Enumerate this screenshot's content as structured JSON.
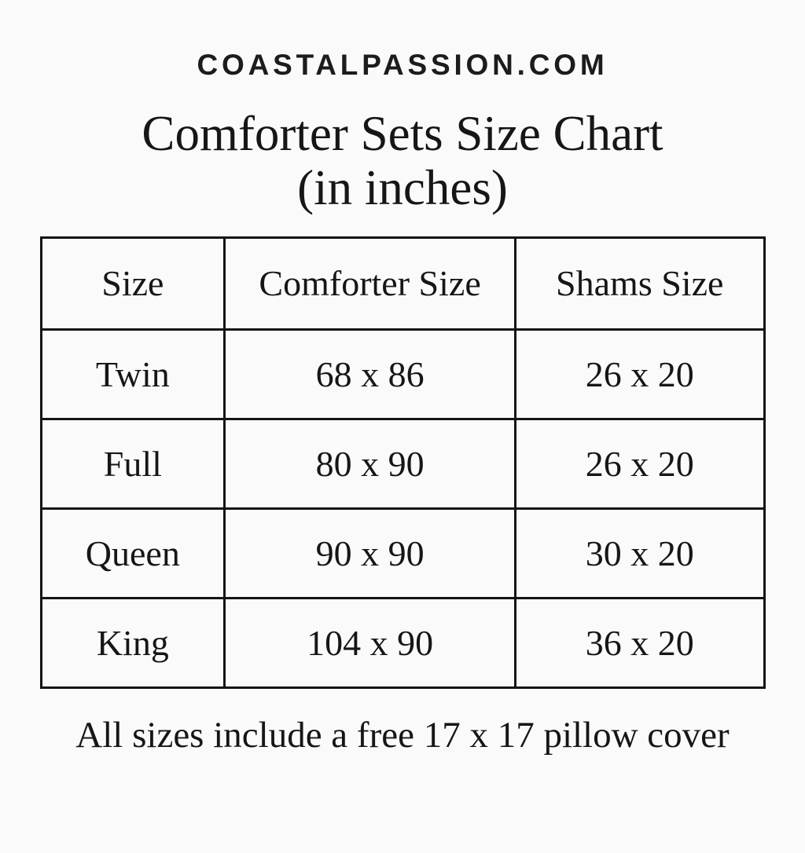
{
  "page": {
    "site_name": "COASTALPASSION.COM",
    "title_line1": "Comforter Sets Size Chart",
    "title_line2": "(in inches)",
    "footer_note": "All sizes include a free 17 x 17 pillow cover"
  },
  "chart_data": {
    "type": "table",
    "title": "Comforter Sets Size Chart (in inches)",
    "columns": [
      "Size",
      "Comforter Size",
      "Shams Size"
    ],
    "rows": [
      [
        "Twin",
        "68 x 86",
        "26 x 20"
      ],
      [
        "Full",
        "80 x 90",
        "26 x 20"
      ],
      [
        "Queen",
        "90 x 90",
        "30 x 20"
      ],
      [
        "King",
        "104 x 90",
        "36 x 20"
      ]
    ],
    "units": "inches",
    "note": "All sizes include a free 17 x 17 pillow cover"
  },
  "colors": {
    "background": "#fafafa",
    "text": "#1a1a1a",
    "border": "#141414"
  }
}
